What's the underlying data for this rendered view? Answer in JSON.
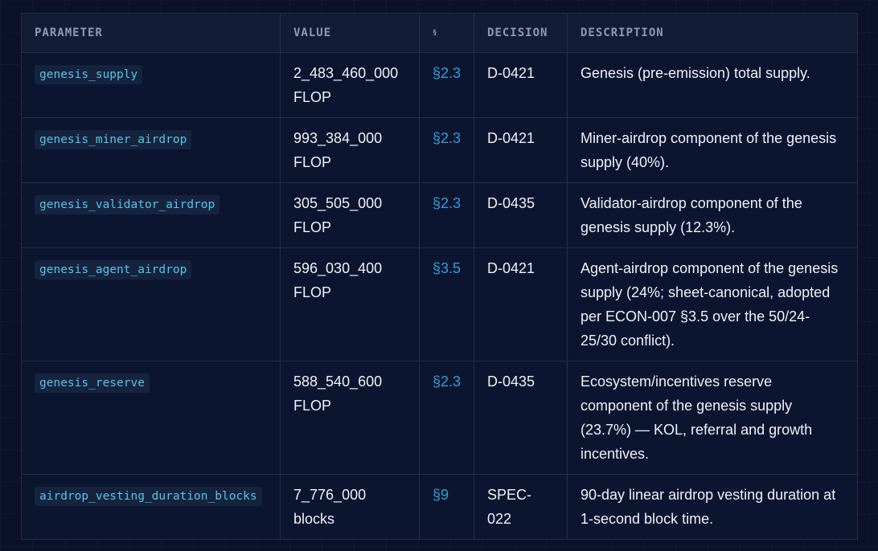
{
  "table": {
    "headers": {
      "parameter": "PARAMETER",
      "value": "VALUE",
      "section": "§",
      "decision": "DECISION",
      "description": "DESCRIPTION"
    },
    "rows": [
      {
        "parameter": "genesis_supply",
        "value": "2_483_460_000 FLOP",
        "section": "§2.3",
        "decision": "D-0421",
        "description": "Genesis (pre-emission) total supply."
      },
      {
        "parameter": "genesis_miner_airdrop",
        "value": "993_384_000 FLOP",
        "section": "§2.3",
        "decision": "D-0421",
        "description": "Miner-airdrop component of the genesis supply (40%)."
      },
      {
        "parameter": "genesis_validator_airdrop",
        "value": "305_505_000 FLOP",
        "section": "§2.3",
        "decision": "D-0435",
        "description": "Validator-airdrop component of the genesis supply (12.3%)."
      },
      {
        "parameter": "genesis_agent_airdrop",
        "value": "596_030_400 FLOP",
        "section": "§3.5",
        "decision": "D-0421",
        "description": "Agent-airdrop component of the genesis supply (24%; sheet-canonical, adopted per ECON-007 §3.5 over the 50/24-25/30 conflict)."
      },
      {
        "parameter": "genesis_reserve",
        "value": "588_540_600 FLOP",
        "section": "§2.3",
        "decision": "D-0435",
        "description": "Ecosystem/incentives reserve component of the genesis supply (23.7%) — KOL, referral and growth incentives."
      },
      {
        "parameter": "airdrop_vesting_duration_blocks",
        "value": "7_776_000 blocks",
        "section": "§9",
        "decision": "SPEC-022",
        "description": "90-day linear airdrop vesting duration at 1-second block time."
      }
    ]
  }
}
